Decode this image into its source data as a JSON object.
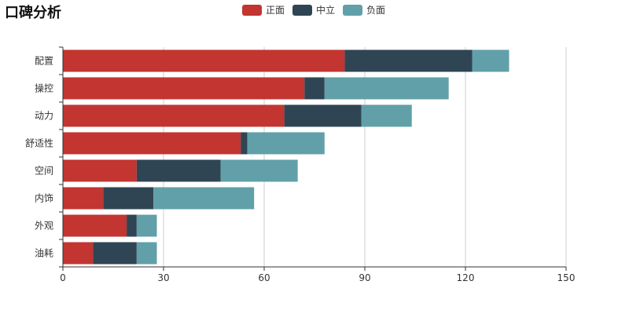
{
  "chart_data": {
    "type": "bar",
    "orientation": "horizontal",
    "stacked": true,
    "title": "口碑分析",
    "categories": [
      "配置",
      "操控",
      "动力",
      "舒适性",
      "空间",
      "内饰",
      "外观",
      "油耗"
    ],
    "series": [
      {
        "name": "正面",
        "color": "#c23531",
        "values": [
          84,
          72,
          66,
          53,
          22,
          12,
          19,
          9
        ]
      },
      {
        "name": "中立",
        "color": "#2f4554",
        "values": [
          38,
          6,
          23,
          2,
          25,
          15,
          3,
          13
        ]
      },
      {
        "name": "负面",
        "color": "#61a0a8",
        "values": [
          11,
          37,
          15,
          23,
          23,
          30,
          6,
          6
        ]
      }
    ],
    "xlim": [
      0,
      150
    ],
    "xticks": [
      0,
      30,
      60,
      90,
      120,
      150
    ],
    "xlabel": "",
    "ylabel": "",
    "grid": true,
    "legend_position": "top-center"
  }
}
